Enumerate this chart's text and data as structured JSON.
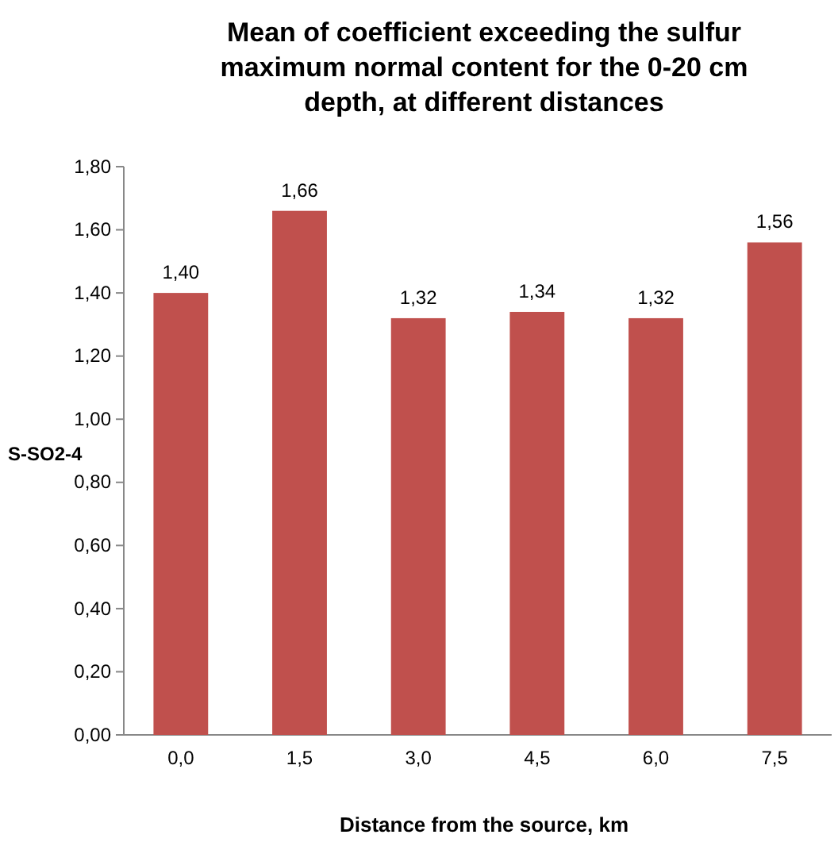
{
  "chart_data": {
    "type": "bar",
    "title": "Mean of coefficient exceeding the sulfur maximum normal content for the 0-20 cm depth, at different distances",
    "xlabel": "Distance from the source, km",
    "ylabel": "S-SO2-4",
    "categories": [
      "0,0",
      "1,5",
      "3,0",
      "4,5",
      "6,0",
      "7,5"
    ],
    "values": [
      1.4,
      1.66,
      1.32,
      1.34,
      1.32,
      1.56
    ],
    "value_labels": [
      "1,40",
      "1,66",
      "1,32",
      "1,34",
      "1,32",
      "1,56"
    ],
    "color": "#c0504d",
    "ylim": [
      0,
      1.8
    ],
    "yticks": [
      {
        "value": 0,
        "label": "0,00"
      },
      {
        "value": 0.2,
        "label": "0,20"
      },
      {
        "value": 0.4,
        "label": "0,40"
      },
      {
        "value": 0.6,
        "label": "0,60"
      },
      {
        "value": 0.8,
        "label": "0,80"
      },
      {
        "value": 1.0,
        "label": "1,00"
      },
      {
        "value": 1.2,
        "label": "1,20"
      },
      {
        "value": 1.4,
        "label": "1,40"
      },
      {
        "value": 1.6,
        "label": "1,60"
      },
      {
        "value": 1.8,
        "label": "1,80"
      }
    ],
    "grid": false
  }
}
